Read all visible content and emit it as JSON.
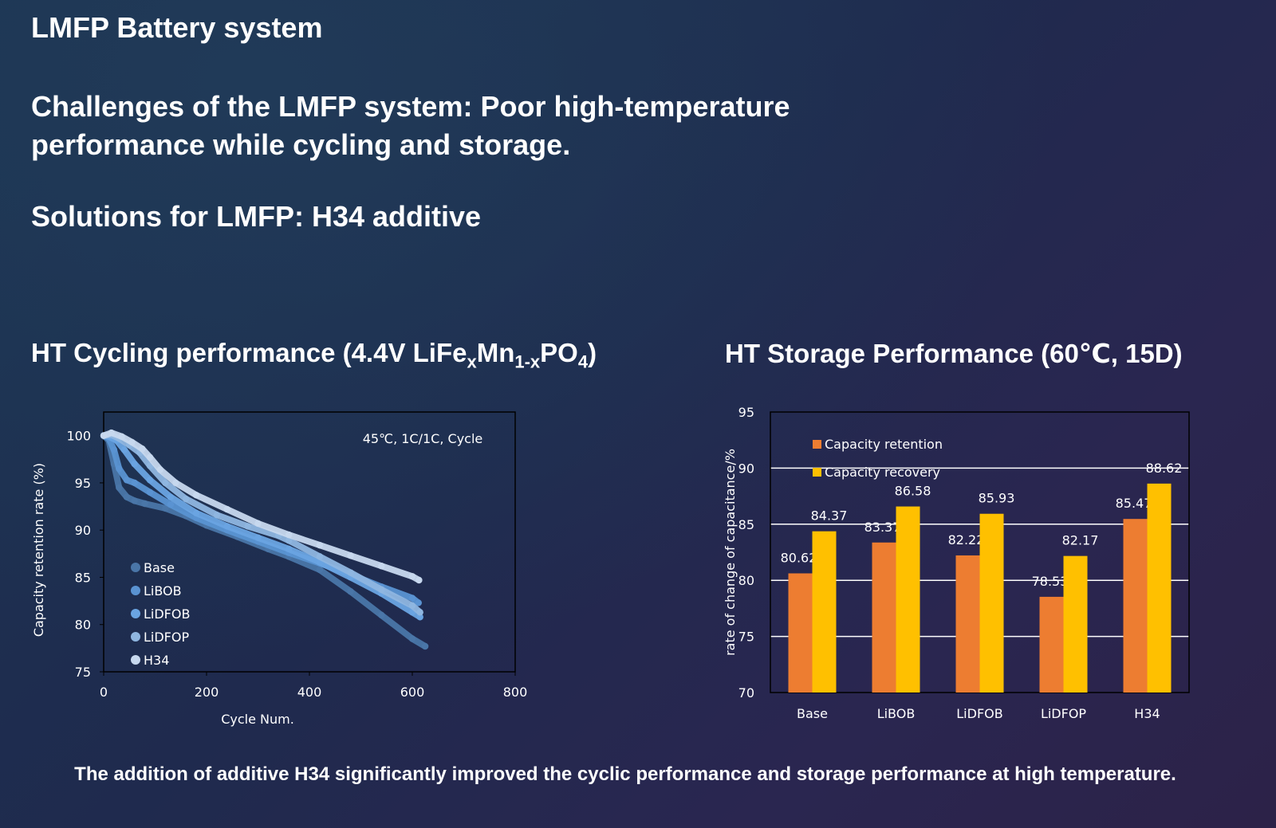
{
  "slide": {
    "title": "LMFP Battery system",
    "challenges_line1": "Challenges of the LMFP system: Poor high-temperature",
    "challenges_line2": "performance while cycling and storage.",
    "solutions": "Solutions for LMFP: H34 additive",
    "footer": "The addition of additive H34 significantly improved the cyclic performance and storage performance at high temperature."
  },
  "cycling": {
    "title_prefix": "HT  Cycling performance (4.4V LiFe",
    "sub_x": "x",
    "mn": "Mn",
    "sub_1x": "1-x",
    "po": "PO",
    "sub_4": "4",
    "title_suffix": ")"
  },
  "storage": {
    "title": "HT Storage Performance   (60℃, 15D)"
  },
  "chart_data": [
    {
      "type": "line",
      "annotation": "45℃,  1C/1C,  Cycle",
      "xlabel": "Cycle Num.",
      "ylabel": "Capacity retention rate (%)",
      "xlim": [
        0,
        800
      ],
      "ylim": [
        75,
        102.5
      ],
      "xticks": [
        0,
        200,
        400,
        600,
        800
      ],
      "yticks": [
        75,
        80,
        85,
        90,
        95,
        100
      ],
      "grid": false,
      "legend": "bottom-left",
      "series": [
        {
          "name": "Base",
          "color": "#4a76a8",
          "points": [
            [
              0,
              100
            ],
            [
              10,
              99.5
            ],
            [
              20,
              97
            ],
            [
              30,
              94.5
            ],
            [
              45,
              93.5
            ],
            [
              60,
              93.1
            ],
            [
              80,
              92.8
            ],
            [
              120,
              92.3
            ],
            [
              160,
              91.5
            ],
            [
              200,
              90.5
            ],
            [
              260,
              89.3
            ],
            [
              320,
              88
            ],
            [
              360,
              87.2
            ],
            [
              420,
              85.8
            ],
            [
              480,
              83.5
            ],
            [
              540,
              81
            ],
            [
              600,
              78.5
            ],
            [
              625,
              77.7
            ]
          ]
        },
        {
          "name": "LiBOB",
          "color": "#5a93d2",
          "points": [
            [
              0,
              100
            ],
            [
              10,
              99.7
            ],
            [
              20,
              98.5
            ],
            [
              30,
              96.5
            ],
            [
              45,
              95.3
            ],
            [
              60,
              95
            ],
            [
              90,
              94
            ],
            [
              130,
              92.7
            ],
            [
              180,
              91.3
            ],
            [
              240,
              90
            ],
            [
              300,
              88.8
            ],
            [
              360,
              87.6
            ],
            [
              420,
              86.5
            ],
            [
              480,
              85.3
            ],
            [
              540,
              84
            ],
            [
              600,
              82.8
            ],
            [
              612,
              82.3
            ]
          ]
        },
        {
          "name": "LiDFOB",
          "color": "#6aa4e2",
          "points": [
            [
              0,
              100
            ],
            [
              10,
              99.9
            ],
            [
              25,
              99.5
            ],
            [
              40,
              98.5
            ],
            [
              60,
              97
            ],
            [
              90,
              95.3
            ],
            [
              130,
              93.5
            ],
            [
              180,
              91.8
            ],
            [
              240,
              90.4
            ],
            [
              300,
              89.2
            ],
            [
              360,
              88
            ],
            [
              420,
              86.6
            ],
            [
              480,
              85
            ],
            [
              540,
              83.3
            ],
            [
              600,
              81.3
            ],
            [
              615,
              80.8
            ]
          ]
        },
        {
          "name": "LiDFOP",
          "color": "#8fb6e0",
          "points": [
            [
              0,
              100
            ],
            [
              15,
              100.1
            ],
            [
              30,
              99.7
            ],
            [
              50,
              99
            ],
            [
              70,
              98.2
            ],
            [
              90,
              96.8
            ],
            [
              120,
              95
            ],
            [
              160,
              93.3
            ],
            [
              220,
              91.6
            ],
            [
              280,
              90.4
            ],
            [
              340,
              89.4
            ],
            [
              360,
              88.9
            ],
            [
              420,
              87.2
            ],
            [
              480,
              85.5
            ],
            [
              540,
              83.7
            ],
            [
              600,
              82
            ],
            [
              615,
              81.3
            ]
          ]
        },
        {
          "name": "H34",
          "color": "#c7d8ee",
          "points": [
            [
              0,
              100
            ],
            [
              15,
              100.3
            ],
            [
              35,
              99.9
            ],
            [
              55,
              99.3
            ],
            [
              75,
              98.6
            ],
            [
              90,
              97.7
            ],
            [
              110,
              96.4
            ],
            [
              140,
              95
            ],
            [
              180,
              93.7
            ],
            [
              240,
              92.2
            ],
            [
              300,
              90.7
            ],
            [
              360,
              89.5
            ],
            [
              420,
              88.4
            ],
            [
              480,
              87.3
            ],
            [
              540,
              86.2
            ],
            [
              600,
              85.1
            ],
            [
              613,
              84.7
            ]
          ]
        }
      ]
    },
    {
      "type": "bar",
      "ylabel": "rate of change of capacitance/%",
      "ylim": [
        70,
        95
      ],
      "yticks": [
        70,
        75,
        80,
        85,
        90,
        95
      ],
      "grid": true,
      "legend": "top-left",
      "categories": [
        "Base",
        "LiBOB",
        "LiDFOB",
        "LiDFOP",
        "H34"
      ],
      "series": [
        {
          "name": "Capacity retention",
          "color": "#ed7d31",
          "values": [
            80.62,
            83.37,
            82.22,
            78.53,
            85.47
          ]
        },
        {
          "name": "Capacity recovery",
          "color": "#ffc000",
          "values": [
            84.37,
            86.58,
            85.93,
            82.17,
            88.62
          ]
        }
      ]
    }
  ]
}
